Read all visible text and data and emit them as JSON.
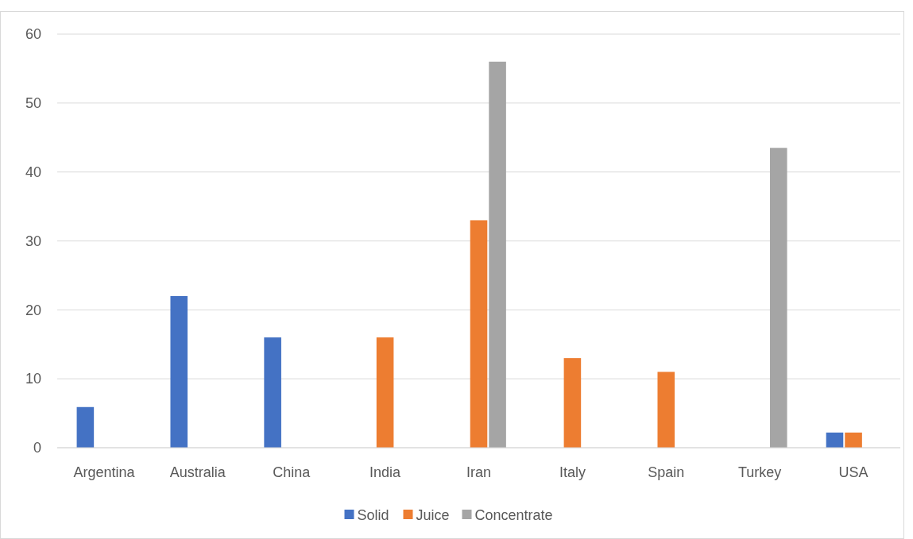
{
  "chart_data": {
    "type": "bar",
    "categories": [
      "Argentina",
      "Australia",
      "China",
      "India",
      "Iran",
      "Italy",
      "Spain",
      "Turkey",
      "USA"
    ],
    "series": [
      {
        "name": "Solid",
        "color": "#4472c4",
        "values": [
          5.9,
          22,
          16,
          null,
          null,
          null,
          null,
          null,
          2.2
        ]
      },
      {
        "name": "Juice",
        "color": "#ed7d31",
        "values": [
          null,
          null,
          null,
          16,
          33,
          13,
          11,
          null,
          2.2
        ]
      },
      {
        "name": "Concentrate",
        "color": "#a5a5a5",
        "values": [
          null,
          null,
          null,
          null,
          56,
          null,
          null,
          43.5,
          null
        ]
      }
    ],
    "ylim": [
      0,
      60
    ],
    "yticks": [
      0,
      10,
      20,
      30,
      40,
      50,
      60
    ],
    "grid": "y",
    "legend": "bottom"
  }
}
